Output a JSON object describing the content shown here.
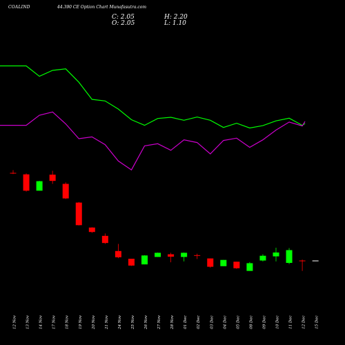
{
  "header": {
    "symbol": "COALIND",
    "subtitle": "44.390  CE Option  Chart Munafasutra.com",
    "close": "C: 2.05",
    "high": "H: 2.20",
    "open": "O: 2.05",
    "low": "L: 1.10"
  },
  "colors": {
    "background": "#000000",
    "bull": "#00ff00",
    "bear": "#ff0000",
    "neutral": "#ffffff",
    "line_upper": "#00ff00",
    "line_lower": "#cc00cc",
    "text": "#ffffff"
  },
  "chart_data": {
    "type": "candlestick",
    "categories": [
      "12 Nov",
      "13 Nov",
      "14 Nov",
      "17 Nov",
      "18 Nov",
      "19 Nov",
      "20 Nov",
      "21 Nov",
      "24 Nov",
      "25 Nov",
      "26 Nov",
      "27 Nov",
      "28 Nov",
      "01 Dec",
      "02 Dec",
      "03 Dec",
      "04 Dec",
      "05 Dec",
      "08 Dec",
      "09 Dec",
      "10 Dec",
      "11 Dec",
      "12 Dec",
      "15 Dec"
    ],
    "ohlc": [
      {
        "o": 28.0,
        "h": 29.8,
        "l": 27.2,
        "c": 27.8
      },
      {
        "o": 27.0,
        "h": 27.6,
        "l": 15.4,
        "c": 16.0
      },
      {
        "o": 16.0,
        "h": 22.6,
        "l": 16.0,
        "c": 22.4
      },
      {
        "o": 26.8,
        "h": 29.4,
        "l": 20.6,
        "c": 22.6
      },
      {
        "o": 20.6,
        "h": 21.6,
        "l": 10.4,
        "c": 10.8
      },
      {
        "o": 8.0,
        "h": 8.4,
        "l": -7.4,
        "c": -7.2
      },
      {
        "o": -8.8,
        "h": -8.6,
        "l": -12.4,
        "c": -11.8
      },
      {
        "o": -14.4,
        "h": -12.8,
        "l": -19.8,
        "c": -19.2
      },
      {
        "o": -24.6,
        "h": -19.8,
        "l": -29.4,
        "c": -28.8
      },
      {
        "o": -29.8,
        "h": -29.8,
        "l": -34.6,
        "c": -34.4
      },
      {
        "o": -33.6,
        "h": -27.4,
        "l": -33.6,
        "c": -27.6
      },
      {
        "o": -28.6,
        "h": -25.6,
        "l": -28.6,
        "c": -25.8
      },
      {
        "o": -26.8,
        "h": -25.8,
        "l": -32.2,
        "c": -28.4
      },
      {
        "o": -28.6,
        "h": -25.6,
        "l": -31.6,
        "c": -25.8
      },
      {
        "o": -27.4,
        "h": -26.4,
        "l": -30.0,
        "c": -27.6
      },
      {
        "o": -29.6,
        "h": -29.6,
        "l": -35.8,
        "c": -35.2
      },
      {
        "o": -34.8,
        "h": -30.6,
        "l": -34.8,
        "c": -30.6
      },
      {
        "o": -31.8,
        "h": -31.8,
        "l": -36.6,
        "c": -36.2
      },
      {
        "o": -38.0,
        "h": -32.0,
        "l": -38.0,
        "c": -32.8
      },
      {
        "o": -31.0,
        "h": -26.8,
        "l": -31.6,
        "c": -27.8
      },
      {
        "o": -28.2,
        "h": -22.4,
        "l": -31.6,
        "c": -25.6
      },
      {
        "o": -32.6,
        "h": -22.6,
        "l": -33.4,
        "c": -24.0
      },
      {
        "o": -31.0,
        "h": -30.4,
        "l": -38.0,
        "c": -31.2
      },
      {
        "o": -31.0,
        "h": -31.0,
        "l": -31.0,
        "c": -31.0
      }
    ],
    "overlay_upper": [
      100.0,
      100.0,
      93.0,
      97.0,
      98.0,
      89.0,
      77.5,
      76.4,
      71.0,
      63.8,
      60.0,
      64.6,
      65.4,
      63.4,
      65.6,
      63.4,
      58.6,
      61.4,
      58.2,
      59.8,
      63.0,
      64.8,
      60.0,
      61.2
    ],
    "overlay_lower": [
      60.0,
      60.0,
      66.8,
      69.0,
      61.0,
      51.0,
      52.2,
      47.0,
      36.0,
      30.0,
      46.2,
      47.6,
      43.2,
      50.2,
      48.4,
      40.8,
      49.8,
      51.4,
      45.2,
      50.2,
      56.8,
      62.2,
      59.6,
      62.6
    ],
    "ylim": [
      -60,
      110
    ]
  }
}
